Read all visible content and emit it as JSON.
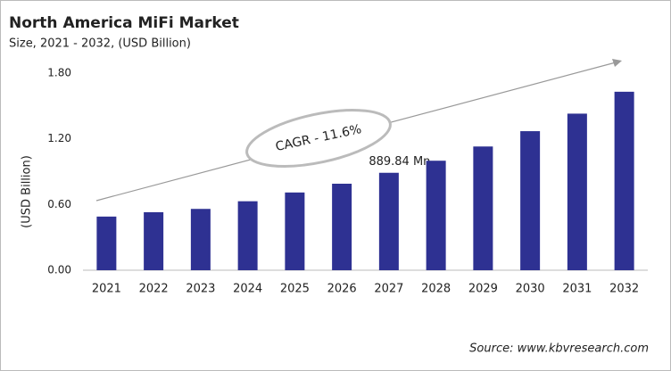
{
  "chart_data": {
    "type": "bar",
    "title": "North America MiFi Market",
    "subtitle": "Size, 2021 - 2032, (USD Billion)",
    "y_label": "(USD Billion)",
    "categories": [
      "2021",
      "2022",
      "2023",
      "2024",
      "2025",
      "2026",
      "2027",
      "2028",
      "2029",
      "2030",
      "2031",
      "2032"
    ],
    "values": [
      0.49,
      0.53,
      0.56,
      0.63,
      0.71,
      0.79,
      0.88984,
      1.0,
      1.13,
      1.27,
      1.43,
      1.63
    ],
    "value_labels": [
      null,
      null,
      null,
      null,
      null,
      null,
      "889.84 Mn",
      null,
      null,
      null,
      null,
      null
    ],
    "color": "#2e3192",
    "ylim": [
      0,
      1.8
    ],
    "yticks": [
      {
        "value": 0,
        "label": "0.00"
      },
      {
        "value": 0.6,
        "label": "0.60"
      },
      {
        "value": 1.2,
        "label": "1.20"
      },
      {
        "value": 1.8,
        "label": "1.80"
      }
    ],
    "grid": false,
    "annotation": "CAGR - 11.6%",
    "source": "Source: www.kbvresearch.com"
  }
}
